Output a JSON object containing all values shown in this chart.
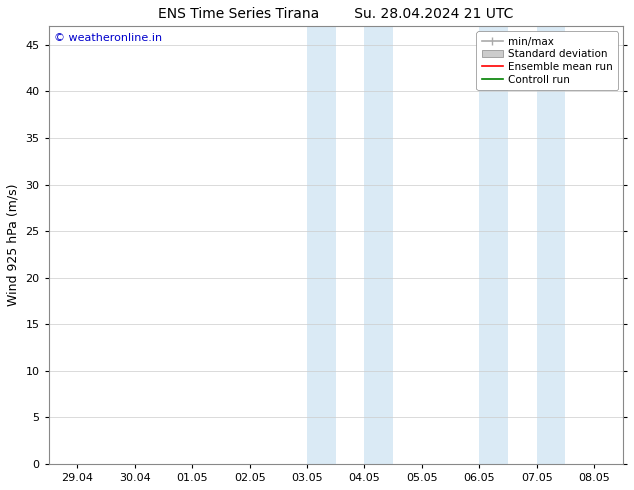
{
  "title_left": "ENS Time Series Tirana",
  "title_right": "Su. 28.04.2024 21 UTC",
  "ylabel": "Wind 925 hPa (m/s)",
  "ylim": [
    0,
    47
  ],
  "yticks": [
    0,
    5,
    10,
    15,
    20,
    25,
    30,
    35,
    40,
    45
  ],
  "xticklabels": [
    "29.04",
    "30.04",
    "01.05",
    "02.05",
    "03.05",
    "04.05",
    "05.05",
    "06.05",
    "07.05",
    "08.05"
  ],
  "xlim_min": -0.5,
  "xlim_max": 9.5,
  "shade_color": "#daeaf5",
  "shaded_x": [
    [
      4.0,
      4.5
    ],
    [
      5.0,
      5.5
    ],
    [
      7.0,
      7.5
    ],
    [
      8.0,
      8.5
    ]
  ],
  "legend_labels": [
    "min/max",
    "Standard deviation",
    "Ensemble mean run",
    "Controll run"
  ],
  "legend_line_color": "#aaaaaa",
  "legend_patch_color": "#cccccc",
  "legend_red": "#ff0000",
  "legend_green": "#008000",
  "watermark_text": "© weatheronline.in",
  "watermark_color": "#0000cc",
  "background_color": "#ffffff",
  "title_fontsize": 10,
  "axis_label_fontsize": 9,
  "tick_fontsize": 8,
  "legend_fontsize": 7.5
}
